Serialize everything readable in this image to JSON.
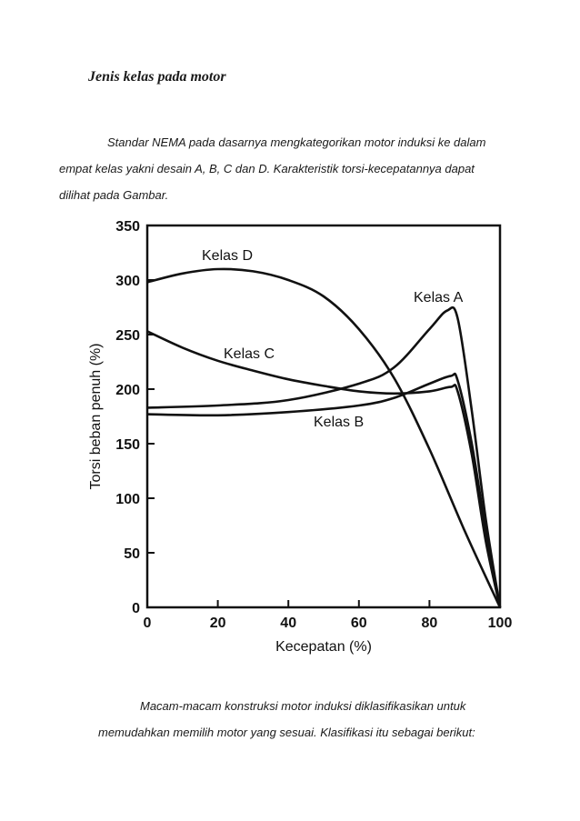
{
  "heading": "Jenis kelas pada motor",
  "paragraph1": [
    "Standar NEMA pada dasarnya mengkategorikan motor induksi ke dalam",
    "empat kelas yakni desain A, B, C dan D. Karakteristik torsi-kecepatannya dapat",
    "dilihat pada Gambar."
  ],
  "paragraph2": [
    "Macam-macam konstruksi motor induksi diklasifikasikan untuk",
    "memudahkan memilih motor yang sesuai. Klasifikasi itu sebagai berikut:"
  ],
  "chart_data": {
    "type": "line",
    "xlabel": "Kecepatan (%)",
    "ylabel": "Torsi beban penuh (%)",
    "xlim": [
      0,
      100
    ],
    "ylim": [
      0,
      350
    ],
    "xticks": [
      "0",
      "20",
      "40",
      "60",
      "80",
      "100"
    ],
    "yticks": [
      "0",
      "50",
      "100",
      "150",
      "200",
      "250",
      "300",
      "350"
    ],
    "series": [
      {
        "name": "Kelas A",
        "x": [
          0,
          20,
          40,
          60,
          70,
          80,
          85,
          88,
          92,
          96,
          100
        ],
        "y": [
          183,
          185,
          190,
          205,
          220,
          255,
          272,
          265,
          180,
          80,
          0
        ]
      },
      {
        "name": "Kelas B",
        "x": [
          0,
          20,
          40,
          60,
          70,
          80,
          86,
          88,
          92,
          96,
          100
        ],
        "y": [
          177,
          176,
          179,
          185,
          192,
          205,
          212,
          208,
          150,
          70,
          0
        ]
      },
      {
        "name": "Kelas C",
        "x": [
          0,
          10,
          20,
          30,
          40,
          50,
          60,
          70,
          80,
          86,
          88,
          92,
          96,
          100
        ],
        "y": [
          253,
          238,
          226,
          217,
          209,
          203,
          198,
          196,
          198,
          202,
          198,
          140,
          60,
          0
        ]
      },
      {
        "name": "Kelas D",
        "x": [
          0,
          10,
          20,
          30,
          40,
          50,
          60,
          70,
          80,
          90,
          100
        ],
        "y": [
          298,
          306,
          310,
          308,
          300,
          285,
          255,
          210,
          145,
          70,
          0
        ]
      }
    ]
  }
}
